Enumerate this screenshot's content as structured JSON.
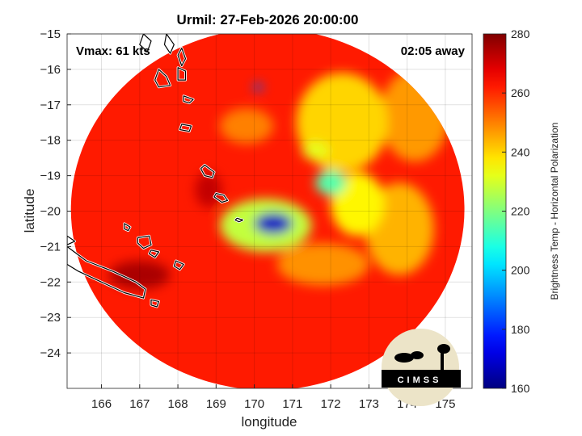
{
  "chart_data": {
    "type": "heatmap",
    "title": "Urmil: 27-Feb-2026 20:00:00",
    "xlabel": "longitude",
    "ylabel": "latitude",
    "xlim": [
      165.1,
      175.7
    ],
    "ylim": [
      -25,
      -15
    ],
    "xticks": [
      166,
      167,
      168,
      169,
      170,
      171,
      172,
      173,
      174,
      175
    ],
    "yticks": [
      -15,
      -16,
      -17,
      -18,
      -19,
      -20,
      -21,
      -22,
      -23,
      -24
    ],
    "grid": true,
    "annotations": {
      "vmax": "Vmax: 61 kts",
      "time_away": "02:05 away"
    },
    "colorbar": {
      "label": "Brightness Temp - Horizontal Polarization",
      "range": [
        160,
        280
      ],
      "ticks": [
        160,
        180,
        200,
        220,
        240,
        260,
        280
      ],
      "colormap": "jet"
    },
    "swath": {
      "center": [
        170.35,
        -19.95
      ],
      "radius_deg_lon": 5.15,
      "radius_deg_lat": 5.1,
      "background_tb": 262
    },
    "features": [
      {
        "lon": 170.5,
        "lat": -20.35,
        "rx": 0.5,
        "ry": 0.3,
        "tb": 168
      },
      {
        "lon": 170.3,
        "lat": -20.4,
        "rx": 1.2,
        "ry": 0.75,
        "tb": 228
      },
      {
        "lon": 172.0,
        "lat": -19.2,
        "rx": 0.4,
        "ry": 0.35,
        "tb": 215
      },
      {
        "lon": 171.6,
        "lat": -18.3,
        "rx": 0.35,
        "ry": 0.25,
        "tb": 232
      },
      {
        "lon": 172.3,
        "lat": -17.5,
        "rx": 1.2,
        "ry": 1.4,
        "tb": 240
      },
      {
        "lon": 172.7,
        "lat": -19.8,
        "rx": 0.7,
        "ry": 0.9,
        "tb": 236
      },
      {
        "lon": 173.8,
        "lat": -20.5,
        "rx": 0.9,
        "ry": 1.3,
        "tb": 244
      },
      {
        "lon": 171.8,
        "lat": -21.5,
        "rx": 1.2,
        "ry": 0.6,
        "tb": 248
      },
      {
        "lon": 174.2,
        "lat": -17.3,
        "rx": 0.9,
        "ry": 1.3,
        "tb": 247
      },
      {
        "lon": 169.8,
        "lat": -17.6,
        "rx": 0.7,
        "ry": 0.5,
        "tb": 250
      },
      {
        "lon": 170.1,
        "lat": -16.5,
        "rx": 0.12,
        "ry": 0.1,
        "tb": 185
      },
      {
        "lon": 168.8,
        "lat": -19.4,
        "rx": 0.35,
        "ry": 0.5,
        "tb": 272
      },
      {
        "lon": 167.0,
        "lat": -21.8,
        "rx": 0.8,
        "ry": 0.4,
        "tb": 275
      }
    ],
    "coastlines": [
      [
        [
          165.1,
          -21.0
        ],
        [
          165.6,
          -21.4
        ],
        [
          166.3,
          -21.7
        ],
        [
          166.9,
          -22.0
        ],
        [
          167.15,
          -22.2
        ],
        [
          167.1,
          -22.45
        ],
        [
          166.6,
          -22.3
        ],
        [
          166.0,
          -22.0
        ],
        [
          165.4,
          -21.7
        ],
        [
          165.1,
          -21.5
        ]
      ],
      [
        [
          165.1,
          -20.7
        ],
        [
          165.3,
          -20.85
        ],
        [
          165.1,
          -20.95
        ]
      ],
      [
        [
          166.95,
          -20.75
        ],
        [
          167.25,
          -20.7
        ],
        [
          167.3,
          -20.95
        ],
        [
          167.1,
          -21.05
        ],
        [
          166.95,
          -20.9
        ]
      ],
      [
        [
          167.3,
          -21.1
        ],
        [
          167.5,
          -21.15
        ],
        [
          167.4,
          -21.3
        ],
        [
          167.25,
          -21.2
        ]
      ],
      [
        [
          167.95,
          -21.4
        ],
        [
          168.15,
          -21.5
        ],
        [
          168.05,
          -21.65
        ],
        [
          167.9,
          -21.55
        ]
      ],
      [
        [
          167.3,
          -22.5
        ],
        [
          167.5,
          -22.55
        ],
        [
          167.45,
          -22.7
        ],
        [
          167.3,
          -22.65
        ]
      ],
      [
        [
          166.6,
          -20.35
        ],
        [
          166.75,
          -20.45
        ],
        [
          166.7,
          -20.55
        ],
        [
          166.6,
          -20.5
        ]
      ],
      [
        [
          169.55,
          -20.2
        ],
        [
          169.7,
          -20.25
        ],
        [
          169.6,
          -20.3
        ],
        [
          169.5,
          -20.25
        ]
      ],
      [
        [
          169.0,
          -19.5
        ],
        [
          169.2,
          -19.55
        ],
        [
          169.3,
          -19.7
        ],
        [
          169.15,
          -19.75
        ],
        [
          168.95,
          -19.6
        ]
      ],
      [
        [
          168.7,
          -18.7
        ],
        [
          168.95,
          -18.9
        ],
        [
          168.9,
          -19.05
        ],
        [
          168.7,
          -19.0
        ],
        [
          168.6,
          -18.8
        ]
      ],
      [
        [
          168.1,
          -17.55
        ],
        [
          168.35,
          -17.6
        ],
        [
          168.3,
          -17.75
        ],
        [
          168.05,
          -17.7
        ]
      ],
      [
        [
          168.15,
          -16.75
        ],
        [
          168.4,
          -16.85
        ],
        [
          168.3,
          -16.95
        ],
        [
          168.15,
          -16.9
        ]
      ],
      [
        [
          167.5,
          -16.0
        ],
        [
          167.7,
          -16.2
        ],
        [
          167.8,
          -16.45
        ],
        [
          167.5,
          -16.5
        ],
        [
          167.4,
          -16.3
        ]
      ],
      [
        [
          168.0,
          -15.95
        ],
        [
          168.2,
          -16.05
        ],
        [
          168.2,
          -16.3
        ],
        [
          168.0,
          -16.3
        ],
        [
          168.0,
          -16.1
        ]
      ],
      [
        [
          167.1,
          -15.0
        ],
        [
          167.3,
          -15.2
        ],
        [
          167.2,
          -15.5
        ],
        [
          167.0,
          -15.3
        ]
      ],
      [
        [
          167.7,
          -15.0
        ],
        [
          167.9,
          -15.3
        ],
        [
          167.8,
          -15.55
        ],
        [
          167.65,
          -15.3
        ]
      ],
      [
        [
          168.1,
          -15.4
        ],
        [
          168.2,
          -15.7
        ],
        [
          168.1,
          -15.9
        ],
        [
          168.0,
          -15.6
        ]
      ]
    ]
  }
}
